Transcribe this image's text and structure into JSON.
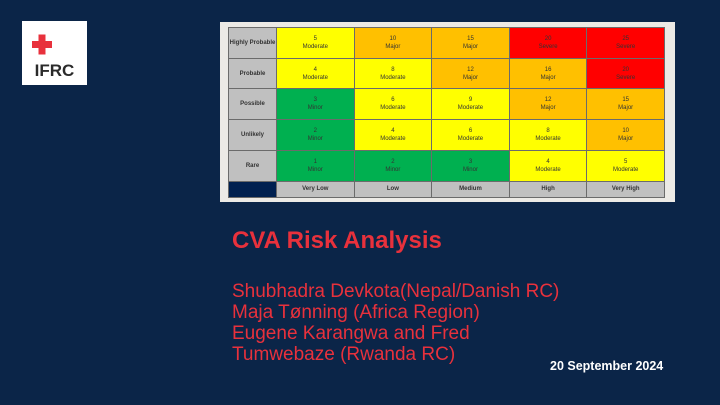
{
  "logo": {
    "text": "IFRC",
    "icon": "red-cross-crescent-icon"
  },
  "matrix": {
    "likelihood": [
      "Highly Probable",
      "Probable",
      "Possible",
      "Unlikely",
      "Rare"
    ],
    "severity": [
      "Very Low",
      "Low",
      "Medium",
      "High",
      "Very High"
    ],
    "cells": [
      [
        {
          "score": "5",
          "level": "Moderate"
        },
        {
          "score": "10",
          "level": "Major"
        },
        {
          "score": "15",
          "level": "Major"
        },
        {
          "score": "20",
          "level": "Severe"
        },
        {
          "score": "25",
          "level": "Severe"
        }
      ],
      [
        {
          "score": "4",
          "level": "Moderate"
        },
        {
          "score": "8",
          "level": "Moderate"
        },
        {
          "score": "12",
          "level": "Major"
        },
        {
          "score": "16",
          "level": "Major"
        },
        {
          "score": "20",
          "level": "Severe"
        }
      ],
      [
        {
          "score": "3",
          "level": "Minor"
        },
        {
          "score": "6",
          "level": "Moderate"
        },
        {
          "score": "9",
          "level": "Moderate"
        },
        {
          "score": "12",
          "level": "Major"
        },
        {
          "score": "15",
          "level": "Major"
        }
      ],
      [
        {
          "score": "2",
          "level": "Minor"
        },
        {
          "score": "4",
          "level": "Moderate"
        },
        {
          "score": "6",
          "level": "Moderate"
        },
        {
          "score": "8",
          "level": "Moderate"
        },
        {
          "score": "10",
          "level": "Major"
        }
      ],
      [
        {
          "score": "1",
          "level": "Minor"
        },
        {
          "score": "2",
          "level": "Minor"
        },
        {
          "score": "3",
          "level": "Minor"
        },
        {
          "score": "4",
          "level": "Moderate"
        },
        {
          "score": "5",
          "level": "Moderate"
        }
      ]
    ],
    "colors": {
      "Minor": "#00b050",
      "Moderate": "#ffff00",
      "Major": "#ffc000",
      "Severe": "#ff0000"
    }
  },
  "title": "CVA Risk Analysis",
  "presenters": [
    "Shubhadra Devkota(Nepal/Danish RC)",
    "Maja Tønning (Africa Region)",
    "Eugene Karangwa and Fred",
    "Tumwebaze (Rwanda RC)"
  ],
  "date": "20 September 2024"
}
